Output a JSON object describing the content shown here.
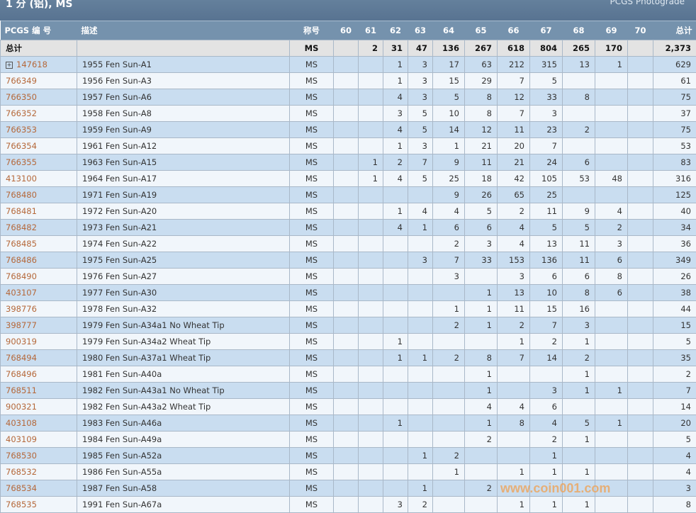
{
  "header": {
    "title": "1 分 (铝), MS",
    "subtitle": "PCGS Photograde"
  },
  "columns": [
    "PCGS 编 号",
    "描述",
    "称号",
    "60",
    "61",
    "62",
    "63",
    "64",
    "65",
    "66",
    "67",
    "68",
    "69",
    "70",
    "总计"
  ],
  "total_row": {
    "label": "总计",
    "designation": "MS",
    "values": [
      "",
      "2",
      "31",
      "47",
      "136",
      "267",
      "618",
      "804",
      "265",
      "170",
      "",
      "2,373"
    ]
  },
  "rows": [
    {
      "id": "147618",
      "desc": "1955 Fen Sun-A1",
      "des": "MS",
      "expand": true,
      "v": [
        "",
        "",
        "1",
        "3",
        "17",
        "63",
        "212",
        "315",
        "13",
        "1",
        "",
        "629"
      ]
    },
    {
      "id": "766349",
      "desc": "1956 Fen Sun-A3",
      "des": "MS",
      "v": [
        "",
        "",
        "1",
        "3",
        "15",
        "29",
        "7",
        "5",
        "",
        "",
        "",
        "61"
      ]
    },
    {
      "id": "766350",
      "desc": "1957 Fen Sun-A6",
      "des": "MS",
      "v": [
        "",
        "",
        "4",
        "3",
        "5",
        "8",
        "12",
        "33",
        "8",
        "",
        "",
        "75"
      ]
    },
    {
      "id": "766352",
      "desc": "1958 Fen Sun-A8",
      "des": "MS",
      "v": [
        "",
        "",
        "3",
        "5",
        "10",
        "8",
        "7",
        "3",
        "",
        "",
        "",
        "37"
      ]
    },
    {
      "id": "766353",
      "desc": "1959 Fen Sun-A9",
      "des": "MS",
      "v": [
        "",
        "",
        "4",
        "5",
        "14",
        "12",
        "11",
        "23",
        "2",
        "",
        "",
        "75"
      ]
    },
    {
      "id": "766354",
      "desc": "1961 Fen Sun-A12",
      "des": "MS",
      "v": [
        "",
        "",
        "1",
        "3",
        "1",
        "21",
        "20",
        "7",
        "",
        "",
        "",
        "53"
      ]
    },
    {
      "id": "766355",
      "desc": "1963 Fen Sun-A15",
      "des": "MS",
      "v": [
        "",
        "1",
        "2",
        "7",
        "9",
        "11",
        "21",
        "24",
        "6",
        "",
        "",
        "83"
      ]
    },
    {
      "id": "413100",
      "desc": "1964 Fen Sun-A17",
      "des": "MS",
      "v": [
        "",
        "1",
        "4",
        "5",
        "25",
        "18",
        "42",
        "105",
        "53",
        "48",
        "",
        "316"
      ]
    },
    {
      "id": "768480",
      "desc": "1971 Fen Sun-A19",
      "des": "MS",
      "v": [
        "",
        "",
        "",
        "",
        "9",
        "26",
        "65",
        "25",
        "",
        "",
        "",
        "125"
      ]
    },
    {
      "id": "768481",
      "desc": "1972 Fen Sun-A20",
      "des": "MS",
      "v": [
        "",
        "",
        "1",
        "4",
        "4",
        "5",
        "2",
        "11",
        "9",
        "4",
        "",
        "40"
      ]
    },
    {
      "id": "768482",
      "desc": "1973 Fen Sun-A21",
      "des": "MS",
      "v": [
        "",
        "",
        "4",
        "1",
        "6",
        "6",
        "4",
        "5",
        "5",
        "2",
        "",
        "34"
      ]
    },
    {
      "id": "768485",
      "desc": "1974 Fen Sun-A22",
      "des": "MS",
      "v": [
        "",
        "",
        "",
        "",
        "2",
        "3",
        "4",
        "13",
        "11",
        "3",
        "",
        "36"
      ]
    },
    {
      "id": "768486",
      "desc": "1975 Fen Sun-A25",
      "des": "MS",
      "v": [
        "",
        "",
        "",
        "3",
        "7",
        "33",
        "153",
        "136",
        "11",
        "6",
        "",
        "349"
      ]
    },
    {
      "id": "768490",
      "desc": "1976 Fen Sun-A27",
      "des": "MS",
      "v": [
        "",
        "",
        "",
        "",
        "3",
        "",
        "3",
        "6",
        "6",
        "8",
        "",
        "26"
      ]
    },
    {
      "id": "403107",
      "desc": "1977 Fen Sun-A30",
      "des": "MS",
      "v": [
        "",
        "",
        "",
        "",
        "",
        "1",
        "13",
        "10",
        "8",
        "6",
        "",
        "38"
      ]
    },
    {
      "id": "398776",
      "desc": "1978 Fen Sun-A32",
      "des": "MS",
      "v": [
        "",
        "",
        "",
        "",
        "1",
        "1",
        "11",
        "15",
        "16",
        "",
        "",
        "44"
      ]
    },
    {
      "id": "398777",
      "desc": "1979 Fen Sun-A34a1 No Wheat Tip",
      "des": "MS",
      "v": [
        "",
        "",
        "",
        "",
        "2",
        "1",
        "2",
        "7",
        "3",
        "",
        "",
        "15"
      ]
    },
    {
      "id": "900319",
      "desc": "1979 Fen Sun-A34a2 Wheat Tip",
      "des": "MS",
      "v": [
        "",
        "",
        "1",
        "",
        "",
        "",
        "1",
        "2",
        "1",
        "",
        "",
        "5"
      ]
    },
    {
      "id": "768494",
      "desc": "1980 Fen Sun-A37a1 Wheat Tip",
      "des": "MS",
      "v": [
        "",
        "",
        "1",
        "1",
        "2",
        "8",
        "7",
        "14",
        "2",
        "",
        "",
        "35"
      ]
    },
    {
      "id": "768496",
      "desc": "1981 Fen Sun-A40a",
      "des": "MS",
      "v": [
        "",
        "",
        "",
        "",
        "",
        "1",
        "",
        "",
        "1",
        "",
        "",
        "2"
      ]
    },
    {
      "id": "768511",
      "desc": "1982 Fen Sun-A43a1 No Wheat Tip",
      "des": "MS",
      "v": [
        "",
        "",
        "",
        "",
        "",
        "1",
        "",
        "3",
        "1",
        "1",
        "",
        "7"
      ]
    },
    {
      "id": "900321",
      "desc": "1982 Fen Sun-A43a2 Wheat Tip",
      "des": "MS",
      "v": [
        "",
        "",
        "",
        "",
        "",
        "4",
        "4",
        "6",
        "",
        "",
        "",
        "14"
      ]
    },
    {
      "id": "403108",
      "desc": "1983 Fen Sun-A46a",
      "des": "MS",
      "v": [
        "",
        "",
        "1",
        "",
        "",
        "1",
        "8",
        "4",
        "5",
        "1",
        "",
        "20"
      ]
    },
    {
      "id": "403109",
      "desc": "1984 Fen Sun-A49a",
      "des": "MS",
      "v": [
        "",
        "",
        "",
        "",
        "",
        "2",
        "",
        "2",
        "1",
        "",
        "",
        "5"
      ]
    },
    {
      "id": "768530",
      "desc": "1985 Fen Sun-A52a",
      "des": "MS",
      "v": [
        "",
        "",
        "",
        "1",
        "2",
        "",
        "",
        "1",
        "",
        "",
        "",
        "4"
      ]
    },
    {
      "id": "768532",
      "desc": "1986 Fen Sun-A55a",
      "des": "MS",
      "v": [
        "",
        "",
        "",
        "",
        "1",
        "",
        "1",
        "1",
        "1",
        "",
        "",
        "4"
      ]
    },
    {
      "id": "768534",
      "desc": "1987 Fen Sun-A58",
      "des": "MS",
      "v": [
        "",
        "",
        "",
        "1",
        "",
        "2",
        "",
        "",
        "",
        "",
        "",
        "3"
      ]
    },
    {
      "id": "768535",
      "desc": "1991 Fen Sun-A67a",
      "des": "MS",
      "v": [
        "",
        "",
        "3",
        "2",
        "",
        "",
        "1",
        "1",
        "1",
        "",
        "",
        "8"
      ]
    }
  ],
  "watermark": "www.coin001.com",
  "colors": {
    "link": "#b5683a",
    "header": "#7592ad",
    "row_alt": "#c9ddf0"
  }
}
